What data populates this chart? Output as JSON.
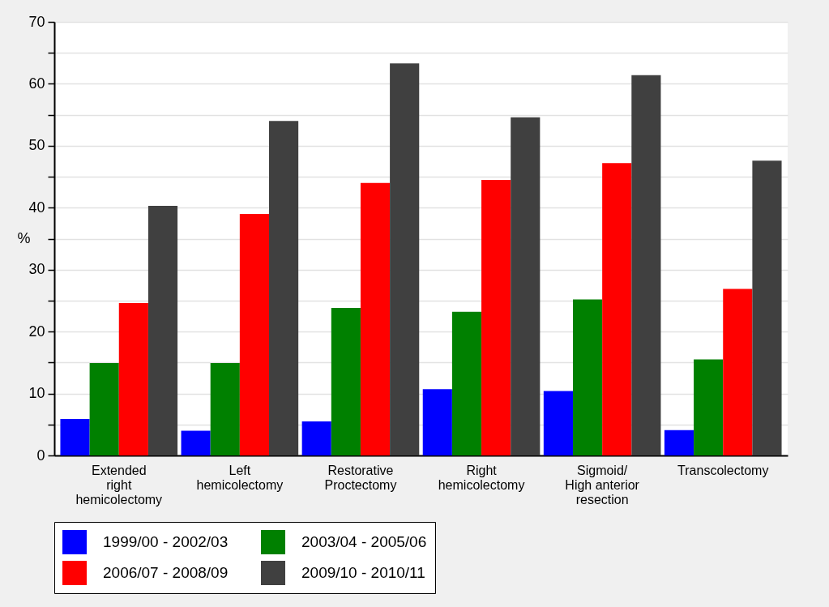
{
  "chart_data": {
    "type": "bar",
    "ylabel": "%",
    "categories": [
      "Extended\nright\nhemicolectomy",
      "Left\nhemicolectomy",
      "Restorative\nProctectomy",
      "Right\nhemicolectomy",
      "Sigmoid/\nHigh anterior\nresection",
      "Transcolectomy"
    ],
    "series": [
      {
        "name": "1999/00 - 2002/03",
        "color": "#0000ff",
        "values": [
          5.9,
          4.0,
          5.5,
          10.7,
          10.4,
          4.1
        ]
      },
      {
        "name": "2003/04 - 2005/06",
        "color": "#008000",
        "values": [
          14.9,
          14.9,
          23.8,
          23.2,
          25.2,
          15.5
        ]
      },
      {
        "name": "2006/07 - 2008/09",
        "color": "#ff0000",
        "values": [
          24.6,
          39.0,
          44.0,
          44.5,
          47.2,
          26.9
        ]
      },
      {
        "name": "2009/10 - 2010/11",
        "color": "#404040",
        "values": [
          40.3,
          54.0,
          63.3,
          54.6,
          61.4,
          47.6
        ]
      }
    ],
    "ylim": [
      0,
      70
    ],
    "yticks": [
      0,
      {
        "value": 5,
        "label": null
      },
      10,
      {
        "value": 15,
        "label": null
      },
      20,
      {
        "value": 25,
        "label": null
      },
      30,
      {
        "value": 35,
        "label": null
      },
      40,
      {
        "value": 45,
        "label": null
      },
      50,
      {
        "value": 55,
        "label": null
      },
      60,
      {
        "value": 65,
        "label": null
      },
      70
    ],
    "grid": true,
    "legend": "bottom"
  }
}
